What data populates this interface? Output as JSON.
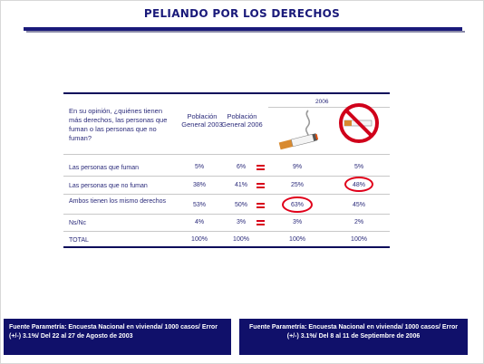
{
  "title": "PELIANDO POR LOS DERECHOS",
  "chart_data": {
    "type": "table",
    "question": "En su opinión, ¿quiénes tienen más derechos, las personas que fuman o las personas que no fuman?",
    "year_group_label": "2006",
    "columns": [
      {
        "label": "Población General 2003"
      },
      {
        "label": "Población General 2006"
      },
      {
        "label": "",
        "icon": "cigarette-icon"
      },
      {
        "label": "",
        "icon": "no-smoking-icon"
      }
    ],
    "rows": [
      {
        "label": "Las personas que fuman",
        "values": [
          "5%",
          "6%",
          "9%",
          "5%"
        ]
      },
      {
        "label": "Las personas que no fuman",
        "values": [
          "38%",
          "41%",
          "25%",
          "48%"
        ]
      },
      {
        "label": "Ambos tienen los mismo derechos",
        "values": [
          "53%",
          "50%",
          "63%",
          "45%"
        ]
      },
      {
        "label": "Ns/Nc",
        "values": [
          "4%",
          "3%",
          "3%",
          "2%"
        ]
      },
      {
        "label": "TOTAL",
        "values": [
          "100%",
          "100%",
          "100%",
          "100%"
        ]
      }
    ],
    "highlighted_cells": [
      "63%",
      "48%"
    ],
    "equal_sign_color": "#d8001a",
    "circle_color": "#e0001a"
  },
  "footer": {
    "left": "Fuente Parametría: Encuesta Nacional en vivienda/ 1000 casos/ Error (+/-) 3.1%/ Del 22 al 27 de Agosto de 2003",
    "right": "Fuente Parametría: Encuesta Nacional en vivienda/ 1000 casos/ Error (+/-) 3.1%/ Del 8 al 11 de Septiembre de 2006"
  },
  "colors": {
    "navy": "#10106a",
    "text": "#2a2a7a",
    "accent_red": "#e0001a"
  }
}
